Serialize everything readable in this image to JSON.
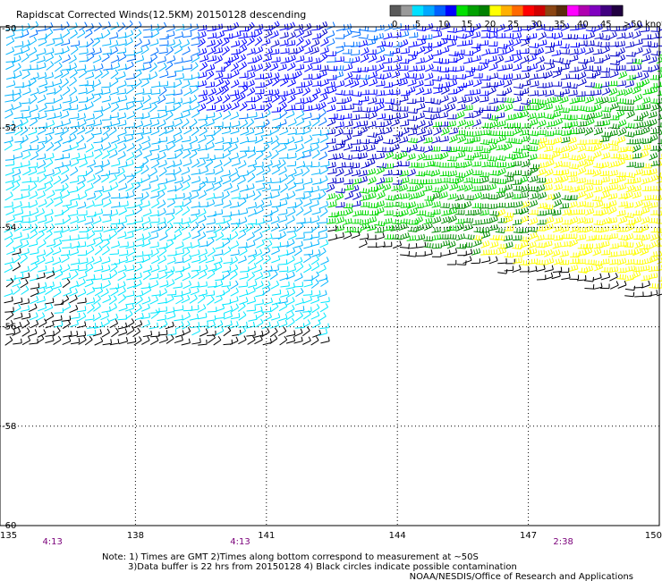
{
  "title": "Rapidscat Corrected Winds(12.5KM) 20150128 descending",
  "legend": {
    "labels": [
      "0",
      "5",
      "10",
      "15",
      "20",
      "25",
      "30",
      "35",
      "40",
      "45",
      ">50 knots"
    ],
    "colors": [
      "#5a5a5a",
      "#9a9a9a",
      "#00e0ff",
      "#00a8ff",
      "#0060ff",
      "#0000ff",
      "#00e000",
      "#00a000",
      "#008000",
      "#ffff00",
      "#ffb000",
      "#ff6a00",
      "#ff0000",
      "#d00000",
      "#8b4513",
      "#5a2d0c",
      "#ff00ff",
      "#b000b0",
      "#8000c0",
      "#400080",
      "#200040"
    ]
  },
  "map": {
    "lon_ticks": [
      135,
      138,
      141,
      144,
      147,
      150
    ],
    "lat_ticks": [
      -50,
      -52,
      -54,
      -56,
      -58,
      -60
    ],
    "lon_range": [
      135,
      150
    ],
    "lat_range": [
      -60,
      -50
    ],
    "times": [
      {
        "label": "4:13",
        "lon": 136.1
      },
      {
        "label": "4:13",
        "lon": 140.4
      },
      {
        "label": "2:38",
        "lon": 147.8
      }
    ],
    "swaths": [
      {
        "name": "western swath",
        "lon_range": [
          135,
          142.3
        ],
        "lat_south_edge": -56.5
      },
      {
        "name": "eastern swath",
        "lon_range": [
          142.3,
          150
        ],
        "lat_south_edge_west": -54.3,
        "lat_south_edge_east": -55.5
      }
    ]
  },
  "notes": {
    "line1": "Note: 1) Times are GMT 2)Times along bottom correspond to measurement at ~50S",
    "line2": "3)Data buffer is 22 hrs from 20150128 4) Black circles indicate possible contamination",
    "credit": "NOAA/NESDIS/Office of Research and Applications"
  }
}
